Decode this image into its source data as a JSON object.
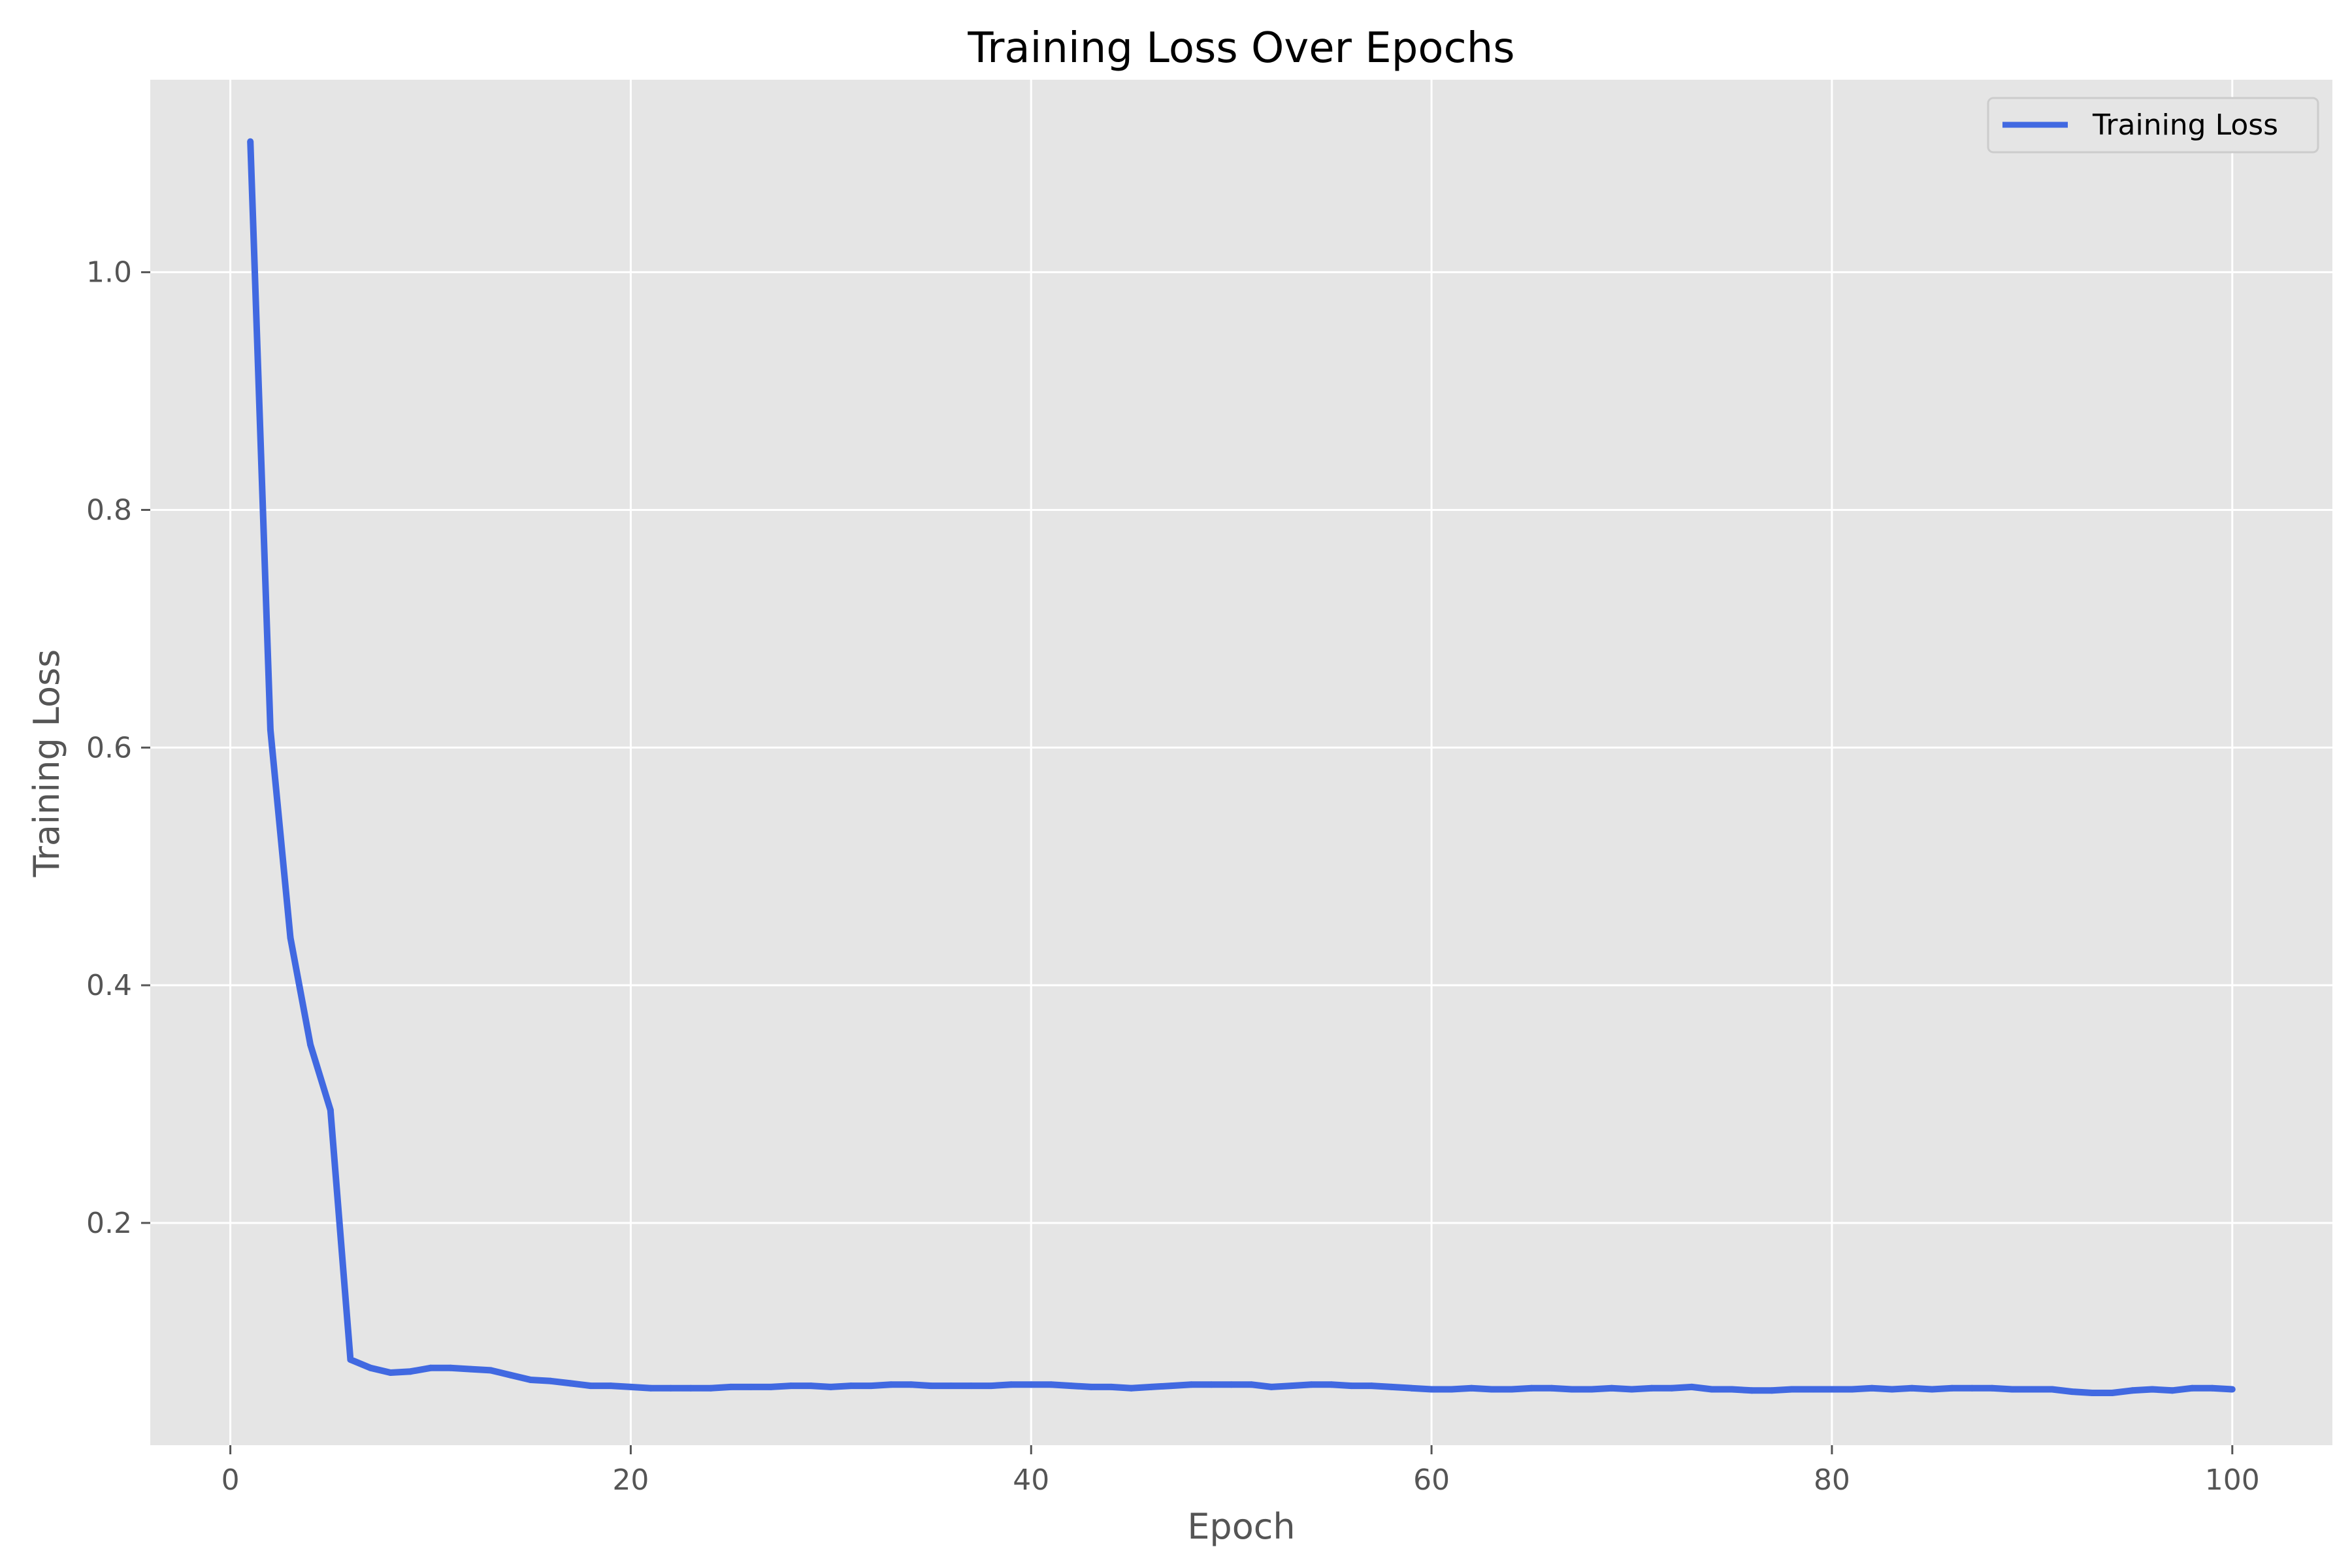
{
  "chart_data": {
    "type": "line",
    "title": "Training Loss Over Epochs",
    "xlabel": "Epoch",
    "ylabel": "Training Loss",
    "xlim": [
      -4,
      105
    ],
    "ylim": [
      0.013,
      1.162
    ],
    "xticks": [
      0,
      20,
      40,
      60,
      80,
      100
    ],
    "yticks": [
      0.2,
      0.4,
      0.6,
      0.8,
      1.0
    ],
    "xtick_labels": [
      "0",
      "20",
      "40",
      "60",
      "80",
      "100"
    ],
    "ytick_labels": [
      "0.2",
      "0.4",
      "0.6",
      "0.8",
      "1.0"
    ],
    "grid": true,
    "legend_position": "top-right",
    "background_color": "#e5e5e5",
    "grid_color": "#ffffff",
    "series": [
      {
        "name": "Training Loss",
        "color": "#4169e1",
        "x": [
          1,
          2,
          3,
          4,
          5,
          6,
          7,
          8,
          9,
          10,
          11,
          12,
          13,
          14,
          15,
          16,
          17,
          18,
          19,
          20,
          21,
          22,
          23,
          24,
          25,
          26,
          27,
          28,
          29,
          30,
          31,
          32,
          33,
          34,
          35,
          36,
          37,
          38,
          39,
          40,
          41,
          42,
          43,
          44,
          45,
          46,
          47,
          48,
          49,
          50,
          51,
          52,
          53,
          54,
          55,
          56,
          57,
          58,
          59,
          60,
          61,
          62,
          63,
          64,
          65,
          66,
          67,
          68,
          69,
          70,
          71,
          72,
          73,
          74,
          75,
          76,
          77,
          78,
          79,
          80,
          81,
          82,
          83,
          84,
          85,
          86,
          87,
          88,
          89,
          90,
          91,
          92,
          93,
          94,
          95,
          96,
          97,
          98,
          99,
          100
        ],
        "values": [
          1.11,
          0.615,
          0.44,
          0.35,
          0.295,
          0.085,
          0.078,
          0.074,
          0.075,
          0.078,
          0.078,
          0.077,
          0.076,
          0.072,
          0.068,
          0.067,
          0.065,
          0.063,
          0.063,
          0.062,
          0.061,
          0.061,
          0.061,
          0.061,
          0.062,
          0.062,
          0.062,
          0.063,
          0.063,
          0.062,
          0.063,
          0.063,
          0.064,
          0.064,
          0.063,
          0.063,
          0.063,
          0.063,
          0.064,
          0.064,
          0.064,
          0.063,
          0.062,
          0.062,
          0.061,
          0.062,
          0.063,
          0.064,
          0.064,
          0.064,
          0.064,
          0.062,
          0.063,
          0.064,
          0.064,
          0.063,
          0.063,
          0.062,
          0.061,
          0.06,
          0.06,
          0.061,
          0.06,
          0.06,
          0.061,
          0.061,
          0.06,
          0.06,
          0.061,
          0.06,
          0.061,
          0.061,
          0.062,
          0.06,
          0.06,
          0.059,
          0.059,
          0.06,
          0.06,
          0.06,
          0.06,
          0.061,
          0.06,
          0.061,
          0.06,
          0.061,
          0.061,
          0.061,
          0.06,
          0.06,
          0.06,
          0.058,
          0.057,
          0.057,
          0.059,
          0.06,
          0.059,
          0.061,
          0.061,
          0.06
        ]
      }
    ]
  }
}
